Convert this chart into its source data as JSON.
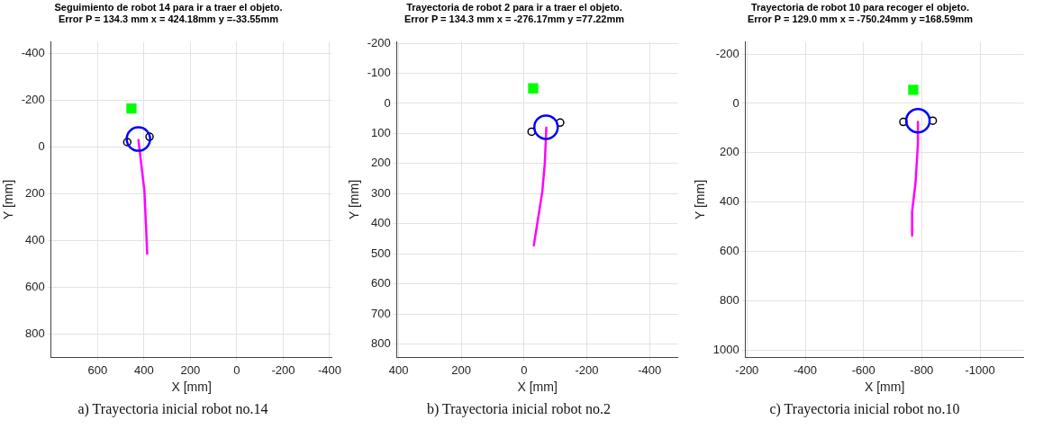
{
  "chart_data": [
    {
      "type": "scatter",
      "title": "Seguimiento de robot 14 para ir a traer el objeto.",
      "subtitle": "Error P = 134.3 mm x = 424.18mm y =-33.55mm",
      "xlabel": "X [mm]",
      "ylabel": "Y [mm]",
      "xlim": [
        800,
        -410
      ],
      "ylim": [
        900,
        -450
      ],
      "xticks": [
        600,
        400,
        200,
        0,
        -200,
        -400
      ],
      "yticks": [
        -400,
        -200,
        0,
        200,
        400,
        600,
        800
      ],
      "grid": true,
      "legend": false,
      "annotations": [
        "a) Trayectoria inicial robot no.14"
      ],
      "series": [
        {
          "marker": "square",
          "color": "#00ff00",
          "x": [
            454
          ],
          "values": [
            -165
          ]
        },
        {
          "marker": "circle",
          "color": "#0000ff",
          "x": [
            424
          ],
          "values": [
            -34
          ]
        },
        {
          "marker": "circle",
          "color": "#000000",
          "x": [
            472,
            376
          ],
          "values": [
            -21,
            -44
          ]
        },
        {
          "type": "line",
          "marker": "none",
          "color": "#ff00ff",
          "x": [
            424,
            398,
            386
          ],
          "values": [
            -30,
            188,
            456
          ]
        }
      ]
    },
    {
      "type": "scatter",
      "title": "Trayectoria de robot 2 para ir a traer el objeto.",
      "subtitle": "Error P = 134.3 mm x = -276.17mm y =77.22mm",
      "xlabel": "X [mm]",
      "ylabel": "Y [mm]",
      "xlim": [
        405,
        -490
      ],
      "ylim": [
        845,
        -205
      ],
      "xticks": [
        400,
        200,
        0,
        -200,
        -400
      ],
      "yticks": [
        -200,
        -100,
        0,
        100,
        200,
        300,
        400,
        500,
        600,
        700,
        800
      ],
      "grid": true,
      "legend": false,
      "annotations": [
        "b) Trayectoria inicial robot no.2"
      ],
      "series": [
        {
          "marker": "square",
          "color": "#00ff00",
          "x": [
            -29
          ],
          "values": [
            -50
          ]
        },
        {
          "marker": "circle",
          "color": "#0000ff",
          "x": [
            -70
          ],
          "values": [
            79
          ]
        },
        {
          "marker": "circle",
          "color": "#000000",
          "x": [
            -24,
            -115
          ],
          "values": [
            94,
            64
          ]
        },
        {
          "type": "line",
          "marker": "none",
          "color": "#ff00ff",
          "x": [
            -71,
            -66,
            -58,
            -31
          ],
          "values": [
            81,
            201,
            295,
            472
          ]
        }
      ]
    },
    {
      "type": "scatter",
      "title": "Trayectoria de robot 10 para recoger el objeto.",
      "subtitle": "Error P = 129.0 mm x = -750.24mm y =168.59mm",
      "xlabel": "X [mm]",
      "ylabel": "Y [mm]",
      "xlim": [
        -195,
        -1150
      ],
      "ylim": [
        1030,
        -250
      ],
      "xticks": [
        -200,
        -400,
        -600,
        -800,
        -1000
      ],
      "yticks": [
        -200,
        0,
        200,
        400,
        600,
        800,
        1000
      ],
      "grid": true,
      "legend": false,
      "annotations": [
        "c) Trayectoria inicial robot no.10"
      ],
      "series": [
        {
          "marker": "square",
          "color": "#00ff00",
          "x": [
            -771
          ],
          "values": [
            -55
          ]
        },
        {
          "marker": "circle",
          "color": "#0000ff",
          "x": [
            -787
          ],
          "values": [
            70
          ]
        },
        {
          "marker": "circle",
          "color": "#000000",
          "x": [
            -737,
            -838
          ],
          "values": [
            75,
            70
          ]
        },
        {
          "type": "line",
          "marker": "none",
          "color": "#ff00ff",
          "x": [
            -787,
            -787,
            -779,
            -767,
            -767
          ],
          "values": [
            75,
            163,
            319,
            440,
            536
          ]
        }
      ]
    }
  ]
}
